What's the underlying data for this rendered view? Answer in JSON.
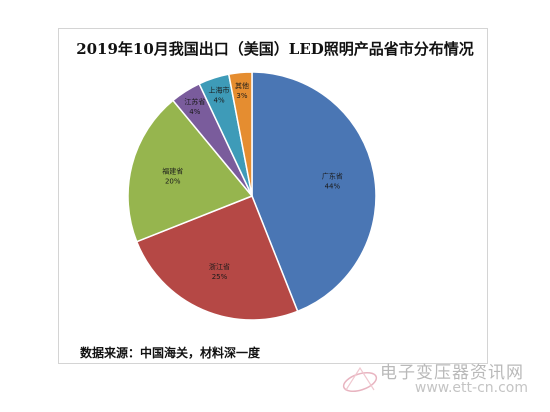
{
  "chart_data": {
    "type": "pie",
    "title": "2019年10月我国出口（美国）LED照明产品省市分布情况",
    "slices": [
      {
        "label": "广东省",
        "value": 44,
        "value_label": "44%",
        "color": "#4A76B4"
      },
      {
        "label": "浙江省",
        "value": 25,
        "value_label": "25%",
        "color": "#B54845"
      },
      {
        "label": "福建省",
        "value": 20,
        "value_label": "20%",
        "color": "#96B54E"
      },
      {
        "label": "江苏省",
        "value": 4,
        "value_label": "4%",
        "color": "#7A5C9C"
      },
      {
        "label": "上海市",
        "value": 4,
        "value_label": "4%",
        "color": "#3E9BB8"
      },
      {
        "label": "其他",
        "value": 3,
        "value_label": "3%",
        "color": "#E58D30"
      }
    ],
    "start_at": "12 o'clock",
    "direction": "clockwise",
    "legend": "none",
    "labels": "inside slices"
  },
  "source_text": "数据来源：中国海关，材料深一度",
  "watermark": {
    "site_name": "电子变压器资讯网",
    "url": "www.ett-cn.com"
  }
}
